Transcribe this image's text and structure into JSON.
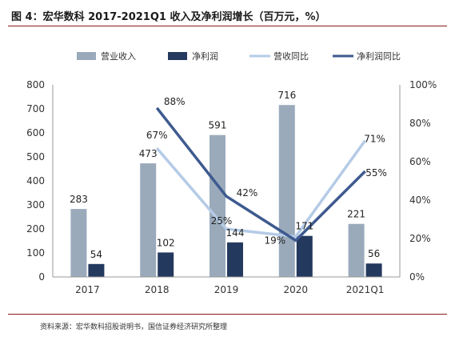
{
  "header": {
    "title": "图 4：宏华数科 2017-2021Q1 收入及净利润增长（百万元，%）"
  },
  "footer": {
    "source": "资料来源：宏华数科招股说明书，国信证券经济研究所整理"
  },
  "colors": {
    "revenue": "#9aaabb",
    "net_profit": "#24395e",
    "rev_yoy": "#b5cbe6",
    "np_yoy": "#3e5a8f"
  },
  "chart_data": {
    "type": "bar",
    "title": "图 4：宏华数科 2017-2021Q1 收入及净利润增长（百万元，%）",
    "categories": [
      "2017",
      "2018",
      "2019",
      "2020",
      "2021Q1"
    ],
    "series": [
      {
        "name": "营业收入",
        "type": "bar",
        "axis": "left",
        "values": [
          283,
          473,
          591,
          716,
          221
        ],
        "labels": [
          "283",
          "473",
          "591",
          "716",
          "221"
        ]
      },
      {
        "name": "净利润",
        "type": "bar",
        "axis": "left",
        "values": [
          54,
          102,
          144,
          171,
          56
        ],
        "labels": [
          "54",
          "102",
          "144",
          "171",
          "56"
        ]
      },
      {
        "name": "营收同比",
        "type": "line",
        "axis": "right",
        "values": [
          null,
          67,
          25,
          21,
          71
        ],
        "labels": [
          "",
          "67%",
          "25%",
          "",
          "71%"
        ]
      },
      {
        "name": "净利润同比",
        "type": "line",
        "axis": "right",
        "values": [
          null,
          88,
          42,
          19,
          55
        ],
        "labels": [
          "",
          "88%",
          "42%",
          "19%",
          "55%"
        ]
      }
    ],
    "ylim_left": [
      0,
      800
    ],
    "left_ticks": [
      "0",
      "100",
      "200",
      "300",
      "400",
      "500",
      "600",
      "700",
      "800"
    ],
    "ylim_right": [
      0,
      100
    ],
    "right_ticks": [
      "0%",
      "20%",
      "40%",
      "60%",
      "80%",
      "100%"
    ],
    "legend_position": "top",
    "grid": false
  }
}
